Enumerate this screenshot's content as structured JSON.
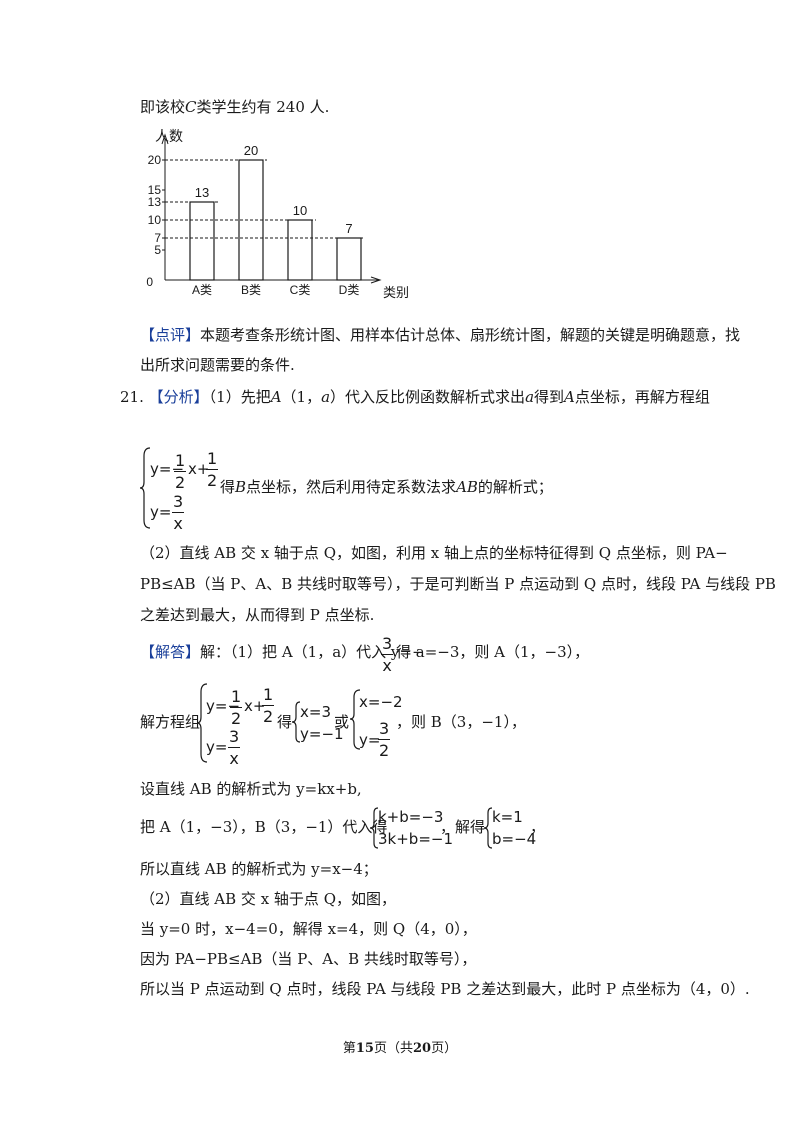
{
  "intro": {
    "a": "即该校",
    "b": "C",
    "c": "类学生约有 240 人."
  },
  "chart_data": {
    "type": "bar",
    "ylabel": "人数",
    "xlabel": "类别",
    "categories": [
      "A类",
      "B类",
      "C类",
      "D类"
    ],
    "values": [
      13,
      20,
      10,
      7
    ],
    "yticks": [
      "0",
      "5",
      "7",
      "10",
      "13",
      "15",
      "20"
    ],
    "ylim": [
      0,
      24
    ],
    "dashed_reference_lines": [
      20,
      13,
      10,
      7
    ]
  },
  "review": {
    "tag": "【点评】",
    "line1": "本题考查条形统计图、用样本估计总体、扇形统计图，解题的关键是明确题意，找",
    "line2": "出所求问题需要的条件."
  },
  "q21": {
    "number": "21.",
    "analysis_tag": "【分析】",
    "analysis_line1": {
      "p1": "（1）先把",
      "A": "A",
      "p2": "（1，",
      "a": "a",
      "p3": "）代入反比例函数解析式求出",
      "a2": "a",
      "p4": "得到",
      "A2": "A",
      "p5": "点坐标，再解方程组"
    },
    "system1": {
      "y1": "y=−",
      "f1n": "1",
      "f1d": "2",
      "x1": "x+",
      "f2n": "1",
      "f2d": "2",
      "y2": "y=",
      "f3n": "3",
      "f3d": "x",
      "after_a": "得",
      "B": "B",
      "after_b": "点坐标，然后利用待定系数法求",
      "AB": "AB",
      "after_c": "的解析式；"
    },
    "part2_line1": "（2）直线 AB 交 x 轴于点 Q，如图，利用 x 轴上点的坐标特征得到 Q 点坐标，则 PA−",
    "part2_line2": "PB≤AB（当 P、A、B 共线时取等号），于是可判断当 P 点运动到 Q 点时，线段 PA 与线段 PB",
    "part2_line3": "之差达到最大，从而得到 P 点坐标.",
    "answer_tag": "【解答】",
    "ans_line1": {
      "p1": "解：（1）把 A（1，a）代入 y=−",
      "fn": "3",
      "fd": "x",
      "p2": "得 a=−3，则 A（1，−3），"
    },
    "ans_system": {
      "lead": "解方程组",
      "y1": "y=−",
      "f1n": "1",
      "f1d": "2",
      "x1": "x+",
      "f2n": "1",
      "f2d": "2",
      "y2": "y=",
      "f3n": "3",
      "f3d": "x",
      "de": "得",
      "s1a": "x=3",
      "s1b": "y=−1",
      "or": "或",
      "s2a": "x=−2",
      "s2b": "y=",
      "s2fn": "3",
      "s2fd": "2",
      "tail": "，则 B（3，−1），"
    },
    "ans_line3": "设直线 AB 的解析式为 y=kx+b,",
    "ans_line4": {
      "p1": "把 A（1，−3），B（3，−1）代入得",
      "e1": "k+b=−3",
      "e2": "3k+b=−1",
      "p2": "，解得",
      "r1": "k=1",
      "r2": "b=−4",
      "p3": "，"
    },
    "ans_line5": "所以直线 AB 的解析式为 y=x−4；",
    "ans_line6": "（2）直线 AB 交 x 轴于点 Q，如图，",
    "ans_line7": "当 y=0 时，x−4=0，解得 x=4，则 Q（4，0），",
    "ans_line8": "因为 PA−PB≤AB（当 P、A、B 共线时取等号），",
    "ans_line9": "所以当 P 点运动到 Q 点时，线段 PA 与线段 PB 之差达到最大，此时 P 点坐标为（4，0）."
  },
  "footer": {
    "a": "第",
    "page": "15",
    "b": "页（共",
    "total": "20",
    "c": "页）"
  }
}
